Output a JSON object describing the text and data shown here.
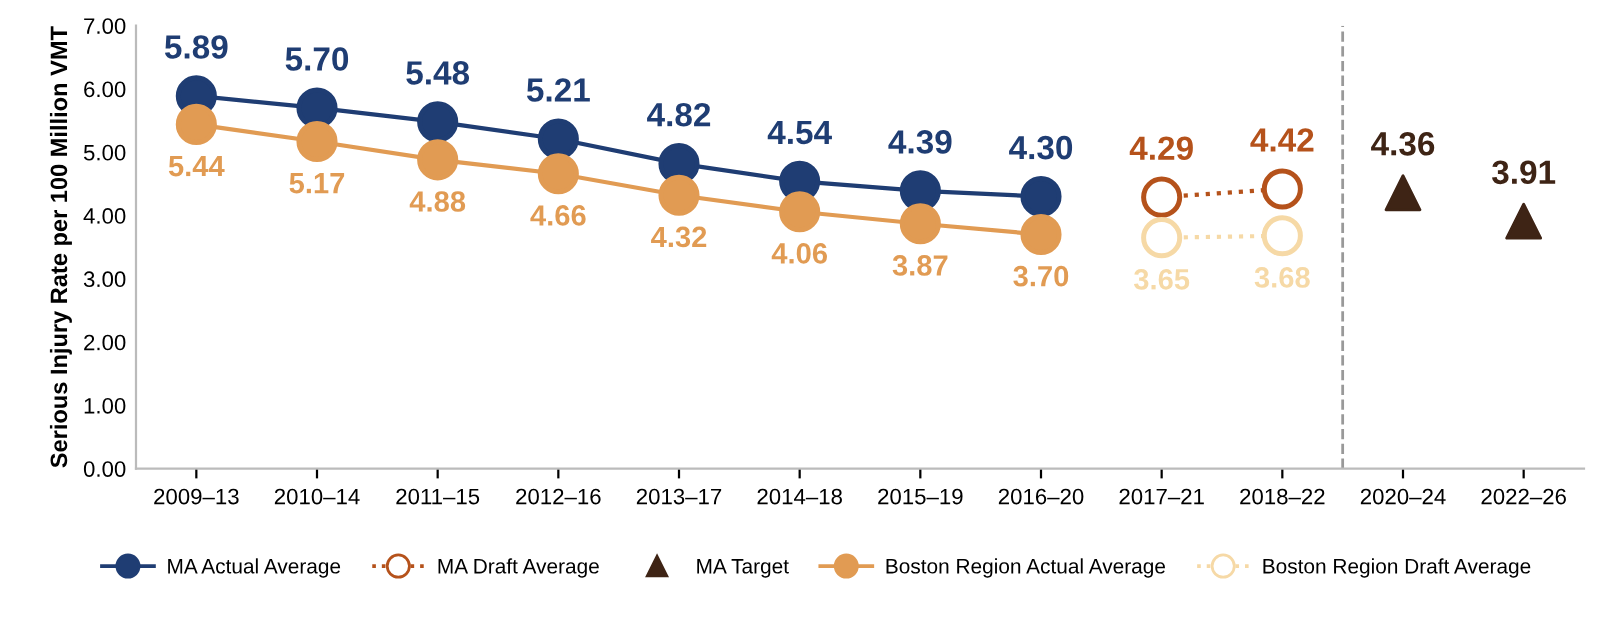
{
  "chart_data": {
    "type": "line",
    "ylabel": "Serious Injury Rate per 100 Million VMT",
    "categories": [
      "2009–13",
      "2010–14",
      "2011–15",
      "2012–16",
      "2013–17",
      "2014–18",
      "2015–19",
      "2016–20",
      "2017–21",
      "2018–22",
      "2020–24",
      "2022–26"
    ],
    "series": [
      {
        "name": "MA Actual Average",
        "color": "#1f3d73",
        "marker": "circle",
        "line_style": "solid",
        "values": [
          5.89,
          5.7,
          5.48,
          5.21,
          4.82,
          4.54,
          4.39,
          4.3,
          null,
          null,
          null,
          null
        ],
        "value_labels": [
          "5.89",
          "5.70",
          "5.48",
          "5.21",
          "4.82",
          "4.54",
          "4.39",
          "4.30",
          null,
          null,
          null,
          null
        ]
      },
      {
        "name": "MA Draft Average",
        "color": "#b5521b",
        "marker": "circle",
        "line_style": "dotted",
        "values": [
          null,
          null,
          null,
          null,
          null,
          null,
          null,
          null,
          4.29,
          4.42,
          null,
          null
        ],
        "value_labels": [
          null,
          null,
          null,
          null,
          null,
          null,
          null,
          null,
          "4.29",
          "4.42",
          null,
          null
        ]
      },
      {
        "name": "MA Target",
        "type": "scatter",
        "color": "#3e2415",
        "marker": "triangle",
        "values": [
          null,
          null,
          null,
          null,
          null,
          null,
          null,
          null,
          null,
          null,
          4.36,
          3.91
        ],
        "value_labels": [
          null,
          null,
          null,
          null,
          null,
          null,
          null,
          null,
          null,
          null,
          "4.36",
          "3.91"
        ]
      },
      {
        "name": "Boston Region Actual Average",
        "color": "#e19b53",
        "marker": "circle",
        "line_style": "solid",
        "values": [
          5.44,
          5.17,
          4.88,
          4.66,
          4.32,
          4.06,
          3.87,
          3.7,
          null,
          null,
          null,
          null
        ],
        "value_labels": [
          "5.44",
          "5.17",
          "4.88",
          "4.66",
          "4.32",
          "4.06",
          "3.87",
          "3.70",
          null,
          null,
          null,
          null
        ]
      },
      {
        "name": "Boston Region Draft Average",
        "color": "#f6d9a6",
        "marker": "circle",
        "line_style": "dotted",
        "values": [
          null,
          null,
          null,
          null,
          null,
          null,
          null,
          null,
          3.65,
          3.68,
          null,
          null
        ],
        "value_labels": [
          null,
          null,
          null,
          null,
          null,
          null,
          null,
          null,
          "3.65",
          "3.68",
          null,
          null
        ]
      }
    ],
    "ylim": [
      0,
      7
    ],
    "yticks": [
      {
        "value": 0,
        "label": "0.00"
      },
      {
        "value": 1,
        "label": "1.00"
      },
      {
        "value": 2,
        "label": "2.00"
      },
      {
        "value": 3,
        "label": "3.00"
      },
      {
        "value": 4,
        "label": "4.00"
      },
      {
        "value": 5,
        "label": "5.00"
      },
      {
        "value": 6,
        "label": "6.00"
      },
      {
        "value": 7,
        "label": "7.00"
      }
    ],
    "grid": false,
    "legend": "bottom"
  }
}
